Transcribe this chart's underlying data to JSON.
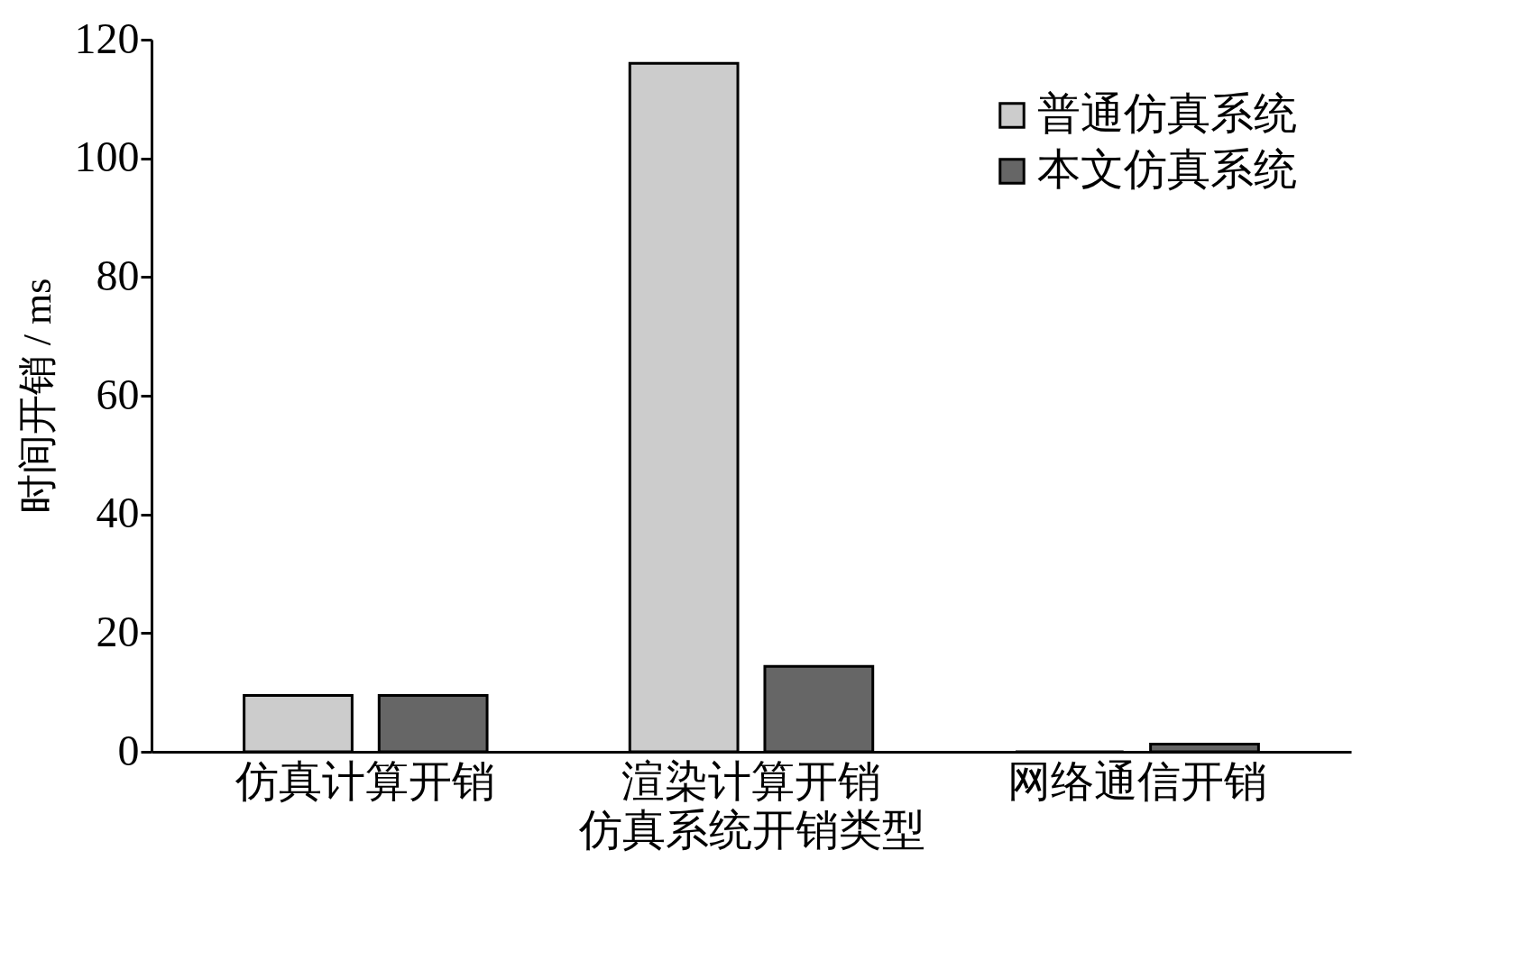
{
  "chart_data": {
    "type": "bar",
    "xlabel": "仿真系统开销类型",
    "ylabel": "时间开销 / ms",
    "categories": [
      "仿真计算开销",
      "渲染计算开销",
      "网络通信开销"
    ],
    "series": [
      {
        "name": "普通仿真系统",
        "color": "#cccccc",
        "values": [
          9.5,
          116,
          0
        ]
      },
      {
        "name": "本文仿真系统",
        "color": "#666666",
        "values": [
          9.5,
          14.4,
          1.3
        ]
      }
    ],
    "ylim": [
      0,
      120
    ],
    "yticks": [
      0,
      20,
      40,
      60,
      80,
      100,
      120
    ],
    "grid": false,
    "legend": "top right"
  }
}
